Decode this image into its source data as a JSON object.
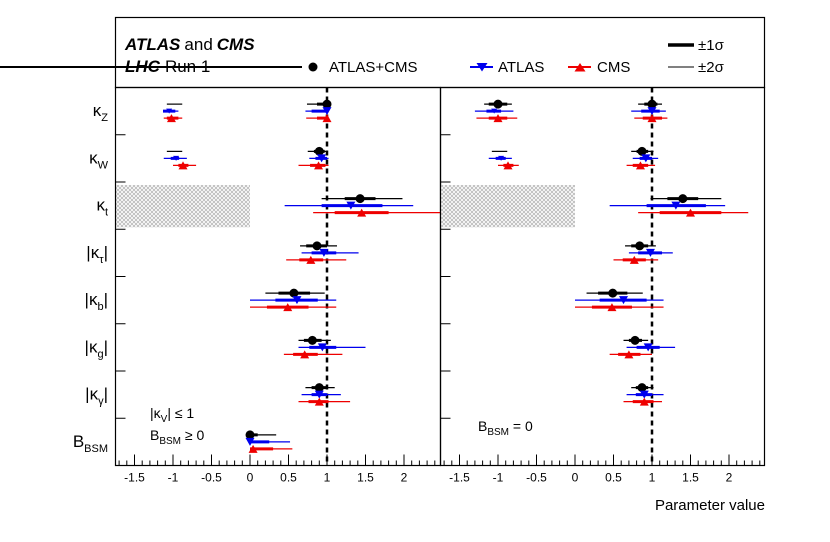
{
  "title": {
    "experiments_bold_a": "ATLAS",
    "and_word": "and",
    "experiments_bold_b": "CMS",
    "accelerator_bold": "LHC",
    "run_label": "Run 1"
  },
  "legend": {
    "series": [
      {
        "name": "ATLAS+CMS",
        "marker": "circle",
        "color": "#000000"
      },
      {
        "name": "ATLAS",
        "marker": "triangle-down",
        "color": "#0000ee"
      },
      {
        "name": "CMS",
        "marker": "triangle-up",
        "color": "#ee0000"
      }
    ],
    "sigma1": "±1σ",
    "sigma2": "±2σ"
  },
  "chart_data": {
    "type": "scatter",
    "xlabel": "Parameter value",
    "xlim": [
      -1.8,
      2.5
    ],
    "xticks_labeled": [
      -1.5,
      -1,
      -0.5,
      0,
      0.5,
      1,
      1.5,
      2
    ],
    "reference_line": 1,
    "parameters": [
      {
        "label": "κ",
        "sub": "Z",
        "bars": ""
      },
      {
        "label": "κ",
        "sub": "W",
        "bars": ""
      },
      {
        "label": "κ",
        "sub": "t",
        "bars": ""
      },
      {
        "label": "κ",
        "sub": "τ",
        "bars": "|"
      },
      {
        "label": "κ",
        "sub": "b",
        "bars": "|"
      },
      {
        "label": "κ",
        "sub": "g",
        "bars": "|"
      },
      {
        "label": "κ",
        "sub": "γ",
        "bars": "|"
      },
      {
        "label": "B",
        "sub": "BSM",
        "bars": ""
      }
    ],
    "panels": [
      {
        "name": "left",
        "annotation_line1_pre": "|κ",
        "annotation_line1_sub": "V",
        "annotation_line1_post": "| ≤ 1",
        "annotation_line2_pre": "B",
        "annotation_line2_sub": "BSM",
        "annotation_line2_post": " ≥ 0",
        "excluded_band": {
          "row": 2,
          "from": -1.8,
          "to": 0
        },
        "series": [
          {
            "name": "ATLAS+CMS",
            "points": [
              {
                "main": {
                  "v": 1.0,
                  "s1": [
                    0.87,
                    1.0
                  ],
                  "s2": [
                    0.74,
                    1.0
                  ]
                },
                "alt": {
                  "v": -0.98,
                  "s2": [
                    -1.08,
                    -0.88
                  ]
                }
              },
              {
                "main": {
                  "v": 0.9,
                  "s1": [
                    0.83,
                    0.97
                  ],
                  "s2": [
                    0.75,
                    1.0
                  ]
                },
                "alt": {
                  "v": -0.98,
                  "s2": [
                    -1.08,
                    -0.88
                  ]
                }
              },
              {
                "main": {
                  "v": 1.43,
                  "s1": [
                    1.23,
                    1.63
                  ],
                  "s2": [
                    0.93,
                    1.98
                  ]
                }
              },
              {
                "main": {
                  "v": 0.87,
                  "s1": [
                    0.73,
                    1.0
                  ],
                  "s2": [
                    0.65,
                    1.13
                  ]
                }
              },
              {
                "main": {
                  "v": 0.57,
                  "s1": [
                    0.37,
                    0.78
                  ],
                  "s2": [
                    0.2,
                    0.97
                  ]
                }
              },
              {
                "main": {
                  "v": 0.81,
                  "s1": [
                    0.7,
                    0.93
                  ],
                  "s2": [
                    0.63,
                    1.05
                  ]
                }
              },
              {
                "main": {
                  "v": 0.9,
                  "s1": [
                    0.8,
                    1.0
                  ],
                  "s2": [
                    0.72,
                    1.1
                  ]
                }
              },
              {
                "main": {
                  "v": 0.0,
                  "s1": [
                    0.0,
                    0.1
                  ],
                  "s2": [
                    0.0,
                    0.34
                  ]
                }
              }
            ]
          },
          {
            "name": "ATLAS",
            "points": [
              {
                "main": {
                  "v": 1.0,
                  "s1": [
                    0.8,
                    1.0
                  ],
                  "s2": [
                    0.72,
                    1.0
                  ]
                },
                "alt": {
                  "v": -1.05,
                  "s1": [
                    -1.13,
                    -0.97
                  ],
                  "s2": [
                    -1.13,
                    -0.93
                  ]
                }
              },
              {
                "main": {
                  "v": 0.93,
                  "s1": [
                    0.85,
                    1.0
                  ],
                  "s2": [
                    0.77,
                    1.02
                  ]
                },
                "alt": {
                  "v": -0.96,
                  "s1": [
                    -1.03,
                    -0.92
                  ],
                  "s2": [
                    -1.12,
                    -0.82
                  ]
                }
              },
              {
                "main": {
                  "v": 1.31,
                  "s1": [
                    0.93,
                    1.72
                  ],
                  "s2": [
                    0.45,
                    2.12
                  ]
                }
              },
              {
                "main": {
                  "v": 0.96,
                  "s1": [
                    0.8,
                    1.12
                  ],
                  "s2": [
                    0.67,
                    1.41
                  ]
                }
              },
              {
                "main": {
                  "v": 0.61,
                  "s1": [
                    0.33,
                    0.88
                  ],
                  "s2": [
                    0.0,
                    1.12
                  ]
                }
              },
              {
                "main": {
                  "v": 0.94,
                  "s1": [
                    0.77,
                    1.12
                  ],
                  "s2": [
                    0.63,
                    1.5
                  ]
                }
              },
              {
                "main": {
                  "v": 0.9,
                  "s1": [
                    0.8,
                    1.0
                  ],
                  "s2": [
                    0.67,
                    1.18
                  ]
                }
              },
              {
                "main": {
                  "v": 0.0,
                  "s1": [
                    0.0,
                    0.25
                  ],
                  "s2": [
                    0.0,
                    0.52
                  ]
                }
              }
            ]
          },
          {
            "name": "CMS",
            "points": [
              {
                "main": {
                  "v": 1.0,
                  "s1": [
                    0.87,
                    1.0
                  ],
                  "s2": [
                    0.73,
                    1.0
                  ]
                },
                "alt": {
                  "v": -1.02,
                  "s1": [
                    -1.08,
                    -0.93
                  ],
                  "s2": [
                    -1.12,
                    -0.88
                  ]
                }
              },
              {
                "main": {
                  "v": 0.89,
                  "s1": [
                    0.78,
                    0.98
                  ],
                  "s2": [
                    0.63,
                    1.02
                  ]
                },
                "alt": {
                  "v": -0.87,
                  "s1": [
                    -0.93,
                    -0.8
                  ],
                  "s2": [
                    -1.0,
                    -0.7
                  ]
                }
              },
              {
                "main": {
                  "v": 1.45,
                  "s1": [
                    1.1,
                    1.8
                  ],
                  "s2": [
                    0.82,
                    2.5
                  ]
                }
              },
              {
                "main": {
                  "v": 0.79,
                  "s1": [
                    0.64,
                    0.95
                  ],
                  "s2": [
                    0.47,
                    1.25
                  ]
                }
              },
              {
                "main": {
                  "v": 0.49,
                  "s1": [
                    0.22,
                    0.76
                  ],
                  "s2": [
                    0.0,
                    1.12
                  ]
                }
              },
              {
                "main": {
                  "v": 0.71,
                  "s1": [
                    0.56,
                    0.88
                  ],
                  "s2": [
                    0.44,
                    1.2
                  ]
                }
              },
              {
                "main": {
                  "v": 0.9,
                  "s1": [
                    0.76,
                    1.02
                  ],
                  "s2": [
                    0.63,
                    1.3
                  ]
                }
              },
              {
                "main": {
                  "v": 0.04,
                  "s1": [
                    0.0,
                    0.3
                  ],
                  "s2": [
                    0.0,
                    0.55
                  ]
                }
              }
            ]
          }
        ]
      },
      {
        "name": "right",
        "annotation_line1_pre": "B",
        "annotation_line1_sub": "BSM",
        "annotation_line1_post": " = 0",
        "excluded_band": {
          "row": 2,
          "from": -1.8,
          "to": 0
        },
        "series": [
          {
            "name": "ATLAS+CMS",
            "points": [
              {
                "main": {
                  "v": 1.0,
                  "s1": [
                    0.9,
                    1.07
                  ],
                  "s2": [
                    0.82,
                    1.13
                  ]
                },
                "alt": {
                  "v": -1.0,
                  "s1": [
                    -1.12,
                    -0.88
                  ],
                  "s2": [
                    -1.18,
                    -0.82
                  ]
                }
              },
              {
                "main": {
                  "v": 0.87,
                  "s1": [
                    0.8,
                    0.95
                  ],
                  "s2": [
                    0.73,
                    1.02
                  ]
                },
                "alt": {
                  "v": -0.98,
                  "s2": [
                    -1.08,
                    -0.88
                  ]
                }
              },
              {
                "main": {
                  "v": 1.4,
                  "s1": [
                    1.2,
                    1.6
                  ],
                  "s2": [
                    0.98,
                    1.9
                  ]
                }
              },
              {
                "main": {
                  "v": 0.84,
                  "s1": [
                    0.73,
                    0.95
                  ],
                  "s2": [
                    0.65,
                    1.05
                  ]
                }
              },
              {
                "main": {
                  "v": 0.49,
                  "s1": [
                    0.3,
                    0.68
                  ],
                  "s2": [
                    0.15,
                    0.88
                  ]
                }
              },
              {
                "main": {
                  "v": 0.78,
                  "s1": [
                    0.7,
                    0.87
                  ],
                  "s2": [
                    0.63,
                    0.95
                  ]
                }
              },
              {
                "main": {
                  "v": 0.87,
                  "s1": [
                    0.79,
                    0.95
                  ],
                  "s2": [
                    0.73,
                    1.02
                  ]
                }
              }
            ]
          },
          {
            "name": "ATLAS",
            "points": [
              {
                "main": {
                  "v": 1.0,
                  "s1": [
                    0.86,
                    1.1
                  ],
                  "s2": [
                    0.73,
                    1.18
                  ]
                },
                "alt": {
                  "v": -1.05,
                  "s1": [
                    -1.15,
                    -0.96
                  ],
                  "s2": [
                    -1.3,
                    -0.8
                  ]
                }
              },
              {
                "main": {
                  "v": 0.92,
                  "s1": [
                    0.84,
                    1.0
                  ],
                  "s2": [
                    0.75,
                    1.08
                  ]
                },
                "alt": {
                  "v": -0.96,
                  "s1": [
                    -1.03,
                    -0.9
                  ],
                  "s2": [
                    -1.12,
                    -0.82
                  ]
                }
              },
              {
                "main": {
                  "v": 1.31,
                  "s1": [
                    0.93,
                    1.7
                  ],
                  "s2": [
                    0.45,
                    1.95
                  ]
                }
              },
              {
                "main": {
                  "v": 0.98,
                  "s1": [
                    0.82,
                    1.13
                  ],
                  "s2": [
                    0.7,
                    1.27
                  ]
                }
              },
              {
                "main": {
                  "v": 0.63,
                  "s1": [
                    0.32,
                    0.93
                  ],
                  "s2": [
                    0.0,
                    1.15
                  ]
                }
              },
              {
                "main": {
                  "v": 0.95,
                  "s1": [
                    0.8,
                    1.1
                  ],
                  "s2": [
                    0.67,
                    1.3
                  ]
                }
              },
              {
                "main": {
                  "v": 0.9,
                  "s1": [
                    0.79,
                    1.0
                  ],
                  "s2": [
                    0.67,
                    1.15
                  ]
                }
              }
            ]
          },
          {
            "name": "CMS",
            "points": [
              {
                "main": {
                  "v": 1.0,
                  "s1": [
                    0.88,
                    1.13
                  ],
                  "s2": [
                    0.77,
                    1.2
                  ]
                },
                "alt": {
                  "v": -1.0,
                  "s1": [
                    -1.12,
                    -0.88
                  ],
                  "s2": [
                    -1.28,
                    -0.75
                  ]
                }
              },
              {
                "main": {
                  "v": 0.85,
                  "s1": [
                    0.75,
                    0.95
                  ],
                  "s2": [
                    0.67,
                    1.04
                  ]
                },
                "alt": {
                  "v": -0.87,
                  "s1": [
                    -0.93,
                    -0.8
                  ],
                  "s2": [
                    -1.0,
                    -0.73
                  ]
                }
              },
              {
                "main": {
                  "v": 1.5,
                  "s1": [
                    1.1,
                    1.9
                  ],
                  "s2": [
                    0.82,
                    2.25
                  ]
                }
              },
              {
                "main": {
                  "v": 0.77,
                  "s1": [
                    0.62,
                    0.92
                  ],
                  "s2": [
                    0.5,
                    1.08
                  ]
                }
              },
              {
                "main": {
                  "v": 0.48,
                  "s1": [
                    0.22,
                    0.74
                  ],
                  "s2": [
                    0.0,
                    1.15
                  ]
                }
              },
              {
                "main": {
                  "v": 0.7,
                  "s1": [
                    0.56,
                    0.85
                  ],
                  "s2": [
                    0.45,
                    1.0
                  ]
                }
              },
              {
                "main": {
                  "v": 0.9,
                  "s1": [
                    0.75,
                    1.02
                  ],
                  "s2": [
                    0.63,
                    1.13
                  ]
                }
              }
            ]
          }
        ]
      }
    ]
  }
}
